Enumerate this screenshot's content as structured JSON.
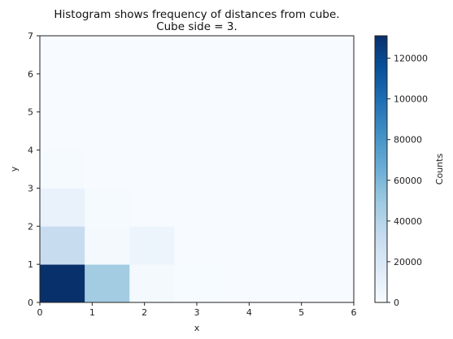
{
  "chart_data": {
    "type": "heatmap",
    "title_lines": [
      "Histogram shows frequency of distances from cube.",
      "Cube side = 3."
    ],
    "xlabel": "x",
    "ylabel": "y",
    "xlim": [
      0,
      6
    ],
    "ylim": [
      0,
      7
    ],
    "x_ticks": [
      "0",
      "1",
      "2",
      "3",
      "4",
      "5",
      "6"
    ],
    "y_ticks": [
      "0",
      "1",
      "2",
      "3",
      "4",
      "5",
      "6",
      "7"
    ],
    "x_bin_edges": [
      0,
      0.857,
      1.714,
      2.571,
      3.429,
      4.286,
      5.143,
      6.0
    ],
    "y_bin_edges": [
      0,
      1,
      2,
      3,
      4,
      5,
      6,
      7
    ],
    "counts": [
      [
        131000,
        47000,
        2000,
        500,
        300,
        0,
        0
      ],
      [
        32000,
        2000,
        7000,
        0,
        0,
        0,
        0
      ],
      [
        9000,
        1500,
        0,
        0,
        0,
        0,
        0
      ],
      [
        1500,
        0,
        0,
        0,
        0,
        0,
        0
      ],
      [
        0,
        0,
        0,
        0,
        0,
        0,
        0
      ],
      [
        0,
        0,
        0,
        0,
        0,
        0,
        0
      ],
      [
        0,
        0,
        0,
        0,
        0,
        0,
        0
      ]
    ],
    "colorbar": {
      "label": "Counts",
      "min": 0,
      "max": 131000,
      "ticks": [
        0,
        20000,
        40000,
        60000,
        80000,
        100000,
        120000
      ],
      "colormap": "Blues",
      "grid": false
    }
  }
}
